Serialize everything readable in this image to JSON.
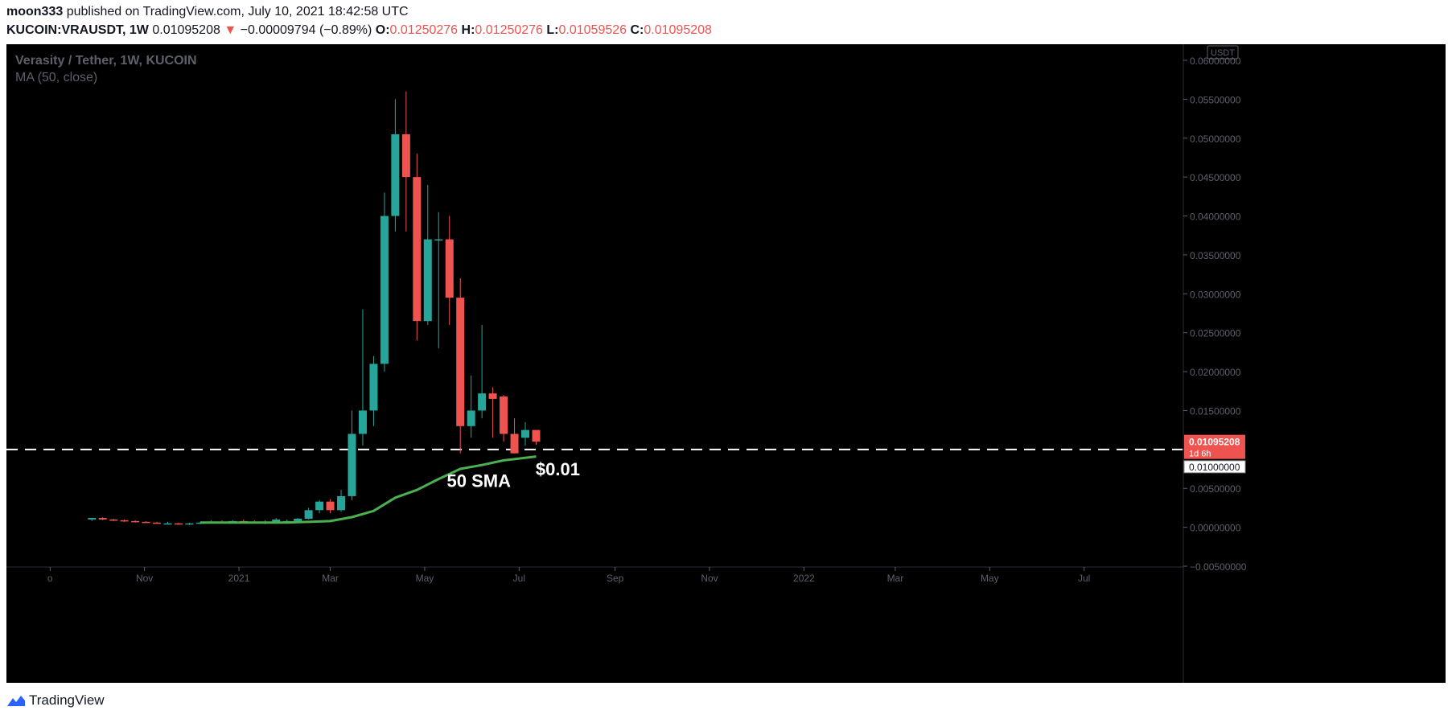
{
  "header": {
    "author": "moon333",
    "published_text": "published on TradingView.com, July 10, 2021 18:42:58 UTC",
    "symbol": "KUCOIN:VRAUSDT, 1W",
    "price": "0.01095208",
    "change": "−0.00009794 (−0.89%)",
    "o_label": "O:",
    "o_value": "0.01250276",
    "h_label": "H:",
    "h_value": "0.01250276",
    "l_label": "L:",
    "l_value": "0.01059526",
    "c_label": "C:",
    "c_value": "0.01095208"
  },
  "legend": {
    "title": "Verasity / Tether, 1W, KUCOIN",
    "indicator": "MA (50, close)"
  },
  "footer": {
    "brand": "TradingView"
  },
  "colors": {
    "up": "#26a69a",
    "down": "#ef5350",
    "sma": "#4caf50",
    "background": "#000000",
    "axis_text": "#5d606b"
  },
  "chart_data": {
    "type": "candlestick",
    "currency_badge": "USDT",
    "y_ticks": [
      "0.06000000",
      "0.05500000",
      "0.05000000",
      "0.04500000",
      "0.04000000",
      "0.03500000",
      "0.03000000",
      "0.02500000",
      "0.02000000",
      "0.01500000",
      "0.01000000",
      "0.00500000",
      "0.00000000",
      "−0.00500000"
    ],
    "ylim": [
      -0.005,
      0.06
    ],
    "x_labels": [
      "o",
      "Nov",
      "2021",
      "Mar",
      "May",
      "Jul",
      "Sep",
      "Nov",
      "2022",
      "Mar",
      "May",
      "Jul"
    ],
    "candles": [
      {
        "date": "2020-09-28",
        "o": 0.001,
        "h": 0.0012,
        "l": 0.0008,
        "c": 0.0012
      },
      {
        "date": "2020-10-05",
        "o": 0.0012,
        "h": 0.0013,
        "l": 0.0009,
        "c": 0.001
      },
      {
        "date": "2020-10-12",
        "o": 0.001,
        "h": 0.0011,
        "l": 0.0008,
        "c": 0.0009
      },
      {
        "date": "2020-10-19",
        "o": 0.0009,
        "h": 0.001,
        "l": 0.0007,
        "c": 0.0008
      },
      {
        "date": "2020-10-26",
        "o": 0.0008,
        "h": 0.0009,
        "l": 0.0006,
        "c": 0.0007
      },
      {
        "date": "2020-11-02",
        "o": 0.0007,
        "h": 0.0008,
        "l": 0.0006,
        "c": 0.0006
      },
      {
        "date": "2020-11-09",
        "o": 0.0006,
        "h": 0.0007,
        "l": 0.0005,
        "c": 0.0005
      },
      {
        "date": "2020-11-16",
        "o": 0.0005,
        "h": 0.0007,
        "l": 0.0004,
        "c": 0.0005
      },
      {
        "date": "2020-11-23",
        "o": 0.0005,
        "h": 0.0006,
        "l": 0.0004,
        "c": 0.0004
      },
      {
        "date": "2020-11-30",
        "o": 0.0004,
        "h": 0.0006,
        "l": 0.0003,
        "c": 0.0005
      },
      {
        "date": "2020-12-07",
        "o": 0.0005,
        "h": 0.0007,
        "l": 0.0004,
        "c": 0.0006
      },
      {
        "date": "2020-12-14",
        "o": 0.0006,
        "h": 0.0009,
        "l": 0.0005,
        "c": 0.0007
      },
      {
        "date": "2020-12-21",
        "o": 0.0007,
        "h": 0.0009,
        "l": 0.0005,
        "c": 0.0006
      },
      {
        "date": "2020-12-28",
        "o": 0.0006,
        "h": 0.0009,
        "l": 0.0005,
        "c": 0.0008
      },
      {
        "date": "2021-01-04",
        "o": 0.0008,
        "h": 0.001,
        "l": 0.0005,
        "c": 0.0007
      },
      {
        "date": "2021-01-11",
        "o": 0.0007,
        "h": 0.0009,
        "l": 0.0005,
        "c": 0.0006
      },
      {
        "date": "2021-01-18",
        "o": 0.0006,
        "h": 0.0009,
        "l": 0.0004,
        "c": 0.0007
      },
      {
        "date": "2021-01-25",
        "o": 0.0007,
        "h": 0.0012,
        "l": 0.0005,
        "c": 0.001
      },
      {
        "date": "2021-02-01",
        "o": 0.0007,
        "h": 0.001,
        "l": 0.0006,
        "c": 0.0008
      },
      {
        "date": "2021-02-08",
        "o": 0.0008,
        "h": 0.0012,
        "l": 0.0006,
        "c": 0.0011
      },
      {
        "date": "2021-02-15",
        "o": 0.0011,
        "h": 0.0025,
        "l": 0.001,
        "c": 0.0022
      },
      {
        "date": "2021-02-22",
        "o": 0.0022,
        "h": 0.0035,
        "l": 0.0018,
        "c": 0.0033
      },
      {
        "date": "2021-03-01",
        "o": 0.0033,
        "h": 0.0036,
        "l": 0.0018,
        "c": 0.0022
      },
      {
        "date": "2021-03-08",
        "o": 0.0022,
        "h": 0.0048,
        "l": 0.002,
        "c": 0.004
      },
      {
        "date": "2021-03-15",
        "o": 0.004,
        "h": 0.015,
        "l": 0.0035,
        "c": 0.012
      },
      {
        "date": "2021-03-22",
        "o": 0.012,
        "h": 0.028,
        "l": 0.0105,
        "c": 0.015
      },
      {
        "date": "2021-03-29",
        "o": 0.015,
        "h": 0.022,
        "l": 0.013,
        "c": 0.021
      },
      {
        "date": "2021-04-05",
        "o": 0.021,
        "h": 0.043,
        "l": 0.02,
        "c": 0.04
      },
      {
        "date": "2021-04-12",
        "o": 0.04,
        "h": 0.055,
        "l": 0.038,
        "c": 0.0505
      },
      {
        "date": "2021-04-19",
        "o": 0.0505,
        "h": 0.056,
        "l": 0.038,
        "c": 0.045
      },
      {
        "date": "2021-04-26",
        "o": 0.045,
        "h": 0.048,
        "l": 0.024,
        "c": 0.0265
      },
      {
        "date": "2021-05-03",
        "o": 0.0265,
        "h": 0.044,
        "l": 0.026,
        "c": 0.037
      },
      {
        "date": "2021-05-10",
        "o": 0.037,
        "h": 0.0405,
        "l": 0.023,
        "c": 0.037
      },
      {
        "date": "2021-05-17",
        "o": 0.037,
        "h": 0.04,
        "l": 0.026,
        "c": 0.0295
      },
      {
        "date": "2021-05-24",
        "o": 0.0295,
        "h": 0.032,
        "l": 0.0095,
        "c": 0.013
      },
      {
        "date": "2021-05-31",
        "o": 0.013,
        "h": 0.0195,
        "l": 0.0115,
        "c": 0.015
      },
      {
        "date": "2021-06-07",
        "o": 0.015,
        "h": 0.026,
        "l": 0.014,
        "c": 0.0172
      },
      {
        "date": "2021-06-14",
        "o": 0.0172,
        "h": 0.018,
        "l": 0.0115,
        "c": 0.0165
      },
      {
        "date": "2021-06-21",
        "o": 0.0168,
        "h": 0.017,
        "l": 0.011,
        "c": 0.012
      },
      {
        "date": "2021-06-28",
        "o": 0.012,
        "h": 0.014,
        "l": 0.0095,
        "c": 0.0095
      },
      {
        "date": "2021-07-05",
        "o": 0.0115,
        "h": 0.0135,
        "l": 0.0105,
        "c": 0.0125
      },
      {
        "date": "2021-07-12",
        "o": 0.0125,
        "h": 0.0125,
        "l": 0.0106,
        "c": 0.011
      }
    ],
    "sma": [
      {
        "date": "2020-12-07",
        "v": 0.0006
      },
      {
        "date": "2021-01-04",
        "v": 0.0006
      },
      {
        "date": "2021-02-01",
        "v": 0.0006
      },
      {
        "date": "2021-03-01",
        "v": 0.0008
      },
      {
        "date": "2021-03-15",
        "v": 0.0013
      },
      {
        "date": "2021-03-29",
        "v": 0.0021
      },
      {
        "date": "2021-04-12",
        "v": 0.0038
      },
      {
        "date": "2021-04-26",
        "v": 0.0048
      },
      {
        "date": "2021-05-10",
        "v": 0.0062
      },
      {
        "date": "2021-05-24",
        "v": 0.0075
      },
      {
        "date": "2021-06-07",
        "v": 0.008
      },
      {
        "date": "2021-06-21",
        "v": 0.0086
      },
      {
        "date": "2021-07-12",
        "v": 0.0091
      }
    ],
    "hline": {
      "value": 0.01,
      "label": "0.01000000"
    },
    "last_price": {
      "value": 0.01095208,
      "label": "0.01095208",
      "countdown": "1d 6h"
    },
    "annotations": [
      {
        "text": "50 SMA",
        "date": "2021-06-05",
        "y": 0.0052
      },
      {
        "text": "$0.01",
        "date": "2021-07-26",
        "y": 0.0067
      }
    ]
  }
}
